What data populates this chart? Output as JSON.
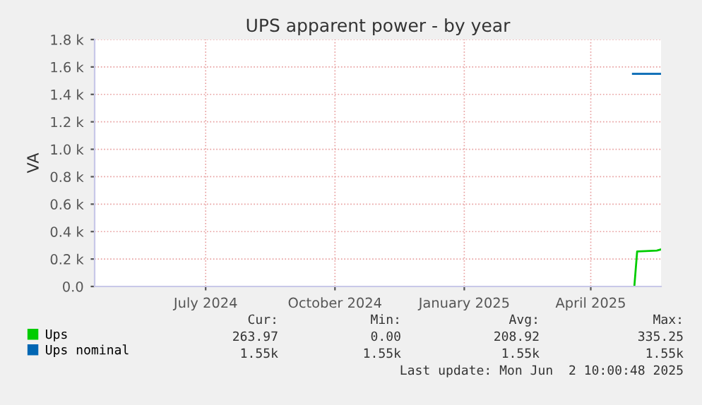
{
  "chart_data": {
    "type": "line",
    "title": "UPS apparent power - by year",
    "ylabel": "VA",
    "xlim": [
      "2024-04-13",
      "2025-05-21"
    ],
    "xticks": [
      {
        "value": "2024-07-01",
        "label": "July 2024"
      },
      {
        "value": "2024-10-01",
        "label": "October 2024"
      },
      {
        "value": "2025-01-01",
        "label": "January 2025"
      },
      {
        "value": "2025-04-01",
        "label": "April 2025"
      }
    ],
    "ylim": [
      0,
      1800
    ],
    "yticks": [
      {
        "value": 0,
        "label": "0.0"
      },
      {
        "value": 200,
        "label": "0.2 k"
      },
      {
        "value": 400,
        "label": "0.4 k"
      },
      {
        "value": 600,
        "label": "0.6 k"
      },
      {
        "value": 800,
        "label": "0.8 k"
      },
      {
        "value": 1000,
        "label": "1.0 k"
      },
      {
        "value": 1200,
        "label": "1.2 k"
      },
      {
        "value": 1400,
        "label": "1.4 k"
      },
      {
        "value": 1600,
        "label": "1.6 k"
      },
      {
        "value": 1800,
        "label": "1.8 k"
      }
    ],
    "grid": true,
    "legend": "bottom",
    "series": [
      {
        "name": "Ups",
        "color": "#00cc00",
        "x": [
          "2025-05-02",
          "2025-05-04",
          "2025-05-10",
          "2025-05-18",
          "2025-05-21"
        ],
        "values": [
          0,
          255,
          258,
          262,
          270
        ]
      },
      {
        "name": "Ups nominal",
        "color": "#0066b3",
        "x": [
          "2025-05-01",
          "2025-05-21"
        ],
        "values": [
          1550,
          1550
        ]
      }
    ],
    "annotations": [
      "Cur:",
      "Min:",
      "Avg:",
      "Max:",
      "263.97",
      "0.00",
      "208.92",
      "335.25",
      "1.55k",
      "1.55k",
      "1.55k",
      "1.55k",
      "Last update: Mon Jun  2 10:00:48 2025"
    ]
  }
}
